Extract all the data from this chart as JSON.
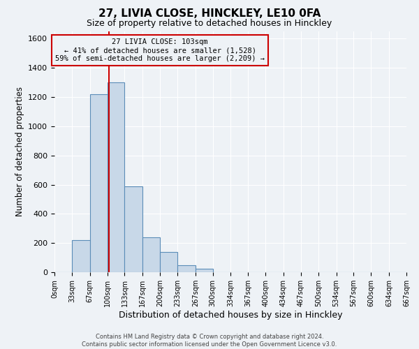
{
  "title": "27, LIVIA CLOSE, HINCKLEY, LE10 0FA",
  "subtitle": "Size of property relative to detached houses in Hinckley",
  "xlabel": "Distribution of detached houses by size in Hinckley",
  "ylabel": "Number of detached properties",
  "bin_edges": [
    0,
    33,
    67,
    100,
    133,
    167,
    200,
    233,
    267,
    300,
    334,
    367,
    400,
    434,
    467,
    500,
    534,
    567,
    600,
    634,
    667
  ],
  "bar_heights": [
    0,
    220,
    1220,
    1300,
    590,
    240,
    140,
    50,
    25,
    0,
    0,
    0,
    0,
    0,
    0,
    0,
    0,
    0,
    0,
    0
  ],
  "bar_color": "#c8d8e8",
  "bar_edge_color": "#5b8db8",
  "property_line_x": 103,
  "property_line_color": "#cc0000",
  "annotation_title": "27 LIVIA CLOSE: 103sqm",
  "annotation_line1": "← 41% of detached houses are smaller (1,528)",
  "annotation_line2": "59% of semi-detached houses are larger (2,209) →",
  "annotation_box_edgecolor": "#cc0000",
  "ylim": [
    0,
    1650
  ],
  "yticks": [
    0,
    200,
    400,
    600,
    800,
    1000,
    1200,
    1400,
    1600
  ],
  "tick_labels": [
    "0sqm",
    "33sqm",
    "67sqm",
    "100sqm",
    "133sqm",
    "167sqm",
    "200sqm",
    "233sqm",
    "267sqm",
    "300sqm",
    "334sqm",
    "367sqm",
    "400sqm",
    "434sqm",
    "467sqm",
    "500sqm",
    "534sqm",
    "567sqm",
    "600sqm",
    "634sqm",
    "667sqm"
  ],
  "footer1": "Contains HM Land Registry data © Crown copyright and database right 2024.",
  "footer2": "Contains public sector information licensed under the Open Government Licence v3.0.",
  "background_color": "#eef2f6",
  "grid_color": "#ffffff",
  "title_fontsize": 11,
  "subtitle_fontsize": 9
}
